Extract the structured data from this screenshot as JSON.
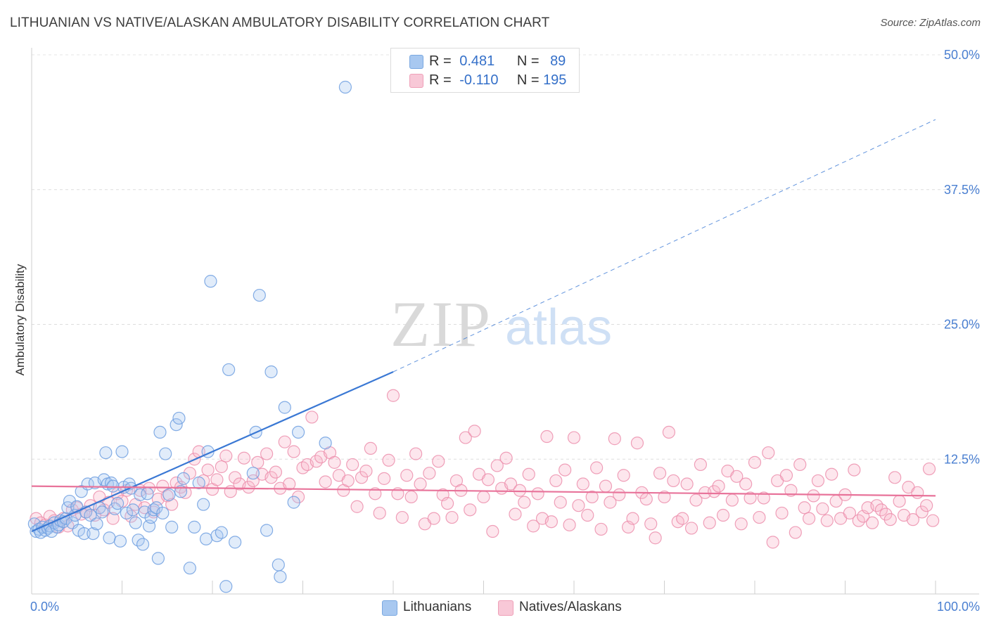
{
  "header": {
    "title": "LITHUANIAN VS NATIVE/ALASKAN AMBULATORY DISABILITY CORRELATION CHART",
    "source": "Source: ZipAtlas.com"
  },
  "watermark": {
    "part1": "ZIP",
    "part2": "atlas"
  },
  "legend": {
    "rows": [
      {
        "r_label": "R = ",
        "r_value": "0.481",
        "n_label": "N = ",
        "n_value": "89",
        "color": "#a8c8f0"
      },
      {
        "r_label": "R = ",
        "r_value": "-0.110",
        "n_label": "N = ",
        "n_value": "195",
        "color": "#f4b8cb"
      }
    ]
  },
  "bottom_legend": [
    {
      "label": "Lithuanians",
      "color": "#a8c8f0"
    },
    {
      "label": "Natives/Alaskans",
      "color": "#f4b8cb"
    }
  ],
  "chart_data": {
    "type": "scatter",
    "title": "LITHUANIAN VS NATIVE/ALASKAN AMBULATORY DISABILITY CORRELATION CHART",
    "xlabel": "",
    "ylabel": "Ambulatory Disability",
    "xlim": [
      0,
      100
    ],
    "ylim": [
      0,
      50
    ],
    "x_tick_labels": [
      "0.0%",
      "100.0%"
    ],
    "y_ticks": [
      12.5,
      25.0,
      37.5,
      50.0
    ],
    "y_tick_labels": [
      "12.5%",
      "25.0%",
      "37.5%",
      "50.0%"
    ],
    "grid": "horizontal-dashed",
    "legend_position": "top-center",
    "series": [
      {
        "name": "Lithuanians",
        "color": "#6fa3e8",
        "trend": {
          "x0": 0,
          "y0": 5.8,
          "x1": 40,
          "y1": 20.6,
          "dash_to_x": 100,
          "dash_to_y": 44.0,
          "color": "#3a78d4"
        },
        "points": [
          [
            0.3,
            6.5
          ],
          [
            0.5,
            5.8
          ],
          [
            0.8,
            6.0
          ],
          [
            1.0,
            5.7
          ],
          [
            1.2,
            6.2
          ],
          [
            1.5,
            5.9
          ],
          [
            1.8,
            6.1
          ],
          [
            2.0,
            6.3
          ],
          [
            2.2,
            5.8
          ],
          [
            2.5,
            6.6
          ],
          [
            2.8,
            6.2
          ],
          [
            3.0,
            6.4
          ],
          [
            3.2,
            6.8
          ],
          [
            3.5,
            6.7
          ],
          [
            3.8,
            7.0
          ],
          [
            4.0,
            8.0
          ],
          [
            4.2,
            8.6
          ],
          [
            4.5,
            6.6
          ],
          [
            4.8,
            7.3
          ],
          [
            5.0,
            8.1
          ],
          [
            5.2,
            5.9
          ],
          [
            5.5,
            9.5
          ],
          [
            5.8,
            5.6
          ],
          [
            6.0,
            7.6
          ],
          [
            6.2,
            10.2
          ],
          [
            6.5,
            7.3
          ],
          [
            6.8,
            5.6
          ],
          [
            7.0,
            10.3
          ],
          [
            7.2,
            6.5
          ],
          [
            7.5,
            8.0
          ],
          [
            7.8,
            7.6
          ],
          [
            8.0,
            10.6
          ],
          [
            8.2,
            13.1
          ],
          [
            8.4,
            10.2
          ],
          [
            8.6,
            5.2
          ],
          [
            8.8,
            10.3
          ],
          [
            9.0,
            10.0
          ],
          [
            9.2,
            7.9
          ],
          [
            9.5,
            8.4
          ],
          [
            9.8,
            4.9
          ],
          [
            10.0,
            13.2
          ],
          [
            10.2,
            9.9
          ],
          [
            10.5,
            7.5
          ],
          [
            10.8,
            10.2
          ],
          [
            11.0,
            9.8
          ],
          [
            11.2,
            7.8
          ],
          [
            11.5,
            6.6
          ],
          [
            11.8,
            5.0
          ],
          [
            12.0,
            9.2
          ],
          [
            12.3,
            4.6
          ],
          [
            12.5,
            7.6
          ],
          [
            12.8,
            9.3
          ],
          [
            13.0,
            6.3
          ],
          [
            13.2,
            7.1
          ],
          [
            13.5,
            7.8
          ],
          [
            13.8,
            8.0
          ],
          [
            14.0,
            3.3
          ],
          [
            14.2,
            15.0
          ],
          [
            14.5,
            7.5
          ],
          [
            14.8,
            13.0
          ],
          [
            15.2,
            9.2
          ],
          [
            15.5,
            6.2
          ],
          [
            16.0,
            15.7
          ],
          [
            16.3,
            16.3
          ],
          [
            16.5,
            9.5
          ],
          [
            16.8,
            10.7
          ],
          [
            17.5,
            2.4
          ],
          [
            18.0,
            6.2
          ],
          [
            18.5,
            10.3
          ],
          [
            19.0,
            8.3
          ],
          [
            19.3,
            5.1
          ],
          [
            19.5,
            13.2
          ],
          [
            19.8,
            29.0
          ],
          [
            20.5,
            5.4
          ],
          [
            21.0,
            5.7
          ],
          [
            21.5,
            0.7
          ],
          [
            21.8,
            20.8
          ],
          [
            22.5,
            4.8
          ],
          [
            24.5,
            11.2
          ],
          [
            24.8,
            15.0
          ],
          [
            25.2,
            27.7
          ],
          [
            26.0,
            5.9
          ],
          [
            26.5,
            20.6
          ],
          [
            27.3,
            2.7
          ],
          [
            27.5,
            1.6
          ],
          [
            28.0,
            17.3
          ],
          [
            29.0,
            8.5
          ],
          [
            29.5,
            15.0
          ],
          [
            32.5,
            14.0
          ],
          [
            34.7,
            47.0
          ]
        ]
      },
      {
        "name": "Natives/Alaskans",
        "color": "#f08fb0",
        "trend": {
          "x0": 0,
          "y0": 10.0,
          "x1": 100,
          "y1": 9.1,
          "color": "#e8739a"
        },
        "points": [
          [
            0.5,
            7.0
          ],
          [
            1.0,
            6.6
          ],
          [
            1.5,
            6.4
          ],
          [
            2.0,
            7.2
          ],
          [
            2.5,
            6.8
          ],
          [
            3.0,
            6.2
          ],
          [
            3.5,
            7.0
          ],
          [
            4.0,
            6.3
          ],
          [
            4.5,
            7.8
          ],
          [
            5.0,
            8.0
          ],
          [
            5.5,
            7.4
          ],
          [
            6.0,
            7.6
          ],
          [
            6.5,
            8.2
          ],
          [
            7.0,
            7.3
          ],
          [
            7.5,
            9.0
          ],
          [
            8.0,
            7.8
          ],
          [
            8.5,
            8.5
          ],
          [
            9.0,
            7.0
          ],
          [
            9.5,
            9.3
          ],
          [
            10.0,
            8.6
          ],
          [
            10.5,
            9.6
          ],
          [
            11.0,
            7.2
          ],
          [
            11.5,
            8.3
          ],
          [
            12.0,
            9.6
          ],
          [
            12.5,
            8.0
          ],
          [
            13.0,
            9.8
          ],
          [
            13.5,
            7.6
          ],
          [
            14.0,
            8.8
          ],
          [
            14.5,
            10.0
          ],
          [
            15.0,
            9.1
          ],
          [
            15.5,
            8.3
          ],
          [
            16.0,
            10.3
          ],
          [
            16.5,
            9.9
          ],
          [
            17.0,
            9.4
          ],
          [
            17.5,
            11.2
          ],
          [
            18.0,
            12.5
          ],
          [
            18.5,
            13.2
          ],
          [
            19.0,
            10.5
          ],
          [
            19.5,
            11.5
          ],
          [
            20.0,
            9.7
          ],
          [
            20.5,
            10.6
          ],
          [
            21.0,
            11.8
          ],
          [
            21.5,
            12.8
          ],
          [
            22.0,
            9.5
          ],
          [
            22.5,
            10.8
          ],
          [
            23.0,
            10.2
          ],
          [
            23.5,
            12.6
          ],
          [
            24.0,
            9.9
          ],
          [
            24.5,
            10.5
          ],
          [
            25.0,
            12.2
          ],
          [
            25.5,
            11.1
          ],
          [
            26.0,
            13.0
          ],
          [
            26.5,
            10.8
          ],
          [
            27.0,
            11.3
          ],
          [
            27.5,
            9.8
          ],
          [
            28.0,
            14.1
          ],
          [
            28.5,
            10.2
          ],
          [
            29.0,
            13.2
          ],
          [
            29.5,
            9.0
          ],
          [
            30.0,
            11.7
          ],
          [
            30.5,
            12.0
          ],
          [
            31.0,
            16.4
          ],
          [
            31.5,
            12.3
          ],
          [
            32.0,
            12.7
          ],
          [
            32.5,
            10.4
          ],
          [
            33.0,
            13.1
          ],
          [
            33.5,
            12.2
          ],
          [
            34.0,
            11.0
          ],
          [
            34.5,
            9.6
          ],
          [
            35.0,
            10.5
          ],
          [
            35.5,
            12.0
          ],
          [
            36.0,
            8.1
          ],
          [
            36.5,
            10.8
          ],
          [
            37.0,
            11.4
          ],
          [
            37.5,
            13.5
          ],
          [
            38.0,
            9.3
          ],
          [
            38.5,
            7.5
          ],
          [
            39.0,
            10.7
          ],
          [
            39.5,
            12.4
          ],
          [
            40.0,
            18.4
          ],
          [
            40.5,
            9.3
          ],
          [
            41.0,
            7.1
          ],
          [
            41.5,
            11.0
          ],
          [
            42.0,
            9.0
          ],
          [
            42.5,
            13.0
          ],
          [
            43.0,
            10.2
          ],
          [
            43.5,
            6.5
          ],
          [
            44.0,
            11.2
          ],
          [
            44.5,
            7.0
          ],
          [
            45.0,
            12.3
          ],
          [
            45.5,
            9.2
          ],
          [
            46.0,
            8.4
          ],
          [
            46.5,
            7.1
          ],
          [
            47.0,
            10.5
          ],
          [
            47.5,
            9.6
          ],
          [
            48.0,
            14.5
          ],
          [
            48.5,
            7.8
          ],
          [
            49.0,
            15.1
          ],
          [
            49.5,
            11.1
          ],
          [
            50.0,
            9.0
          ],
          [
            50.5,
            10.6
          ],
          [
            51.0,
            5.8
          ],
          [
            51.5,
            11.9
          ],
          [
            52.0,
            9.8
          ],
          [
            52.5,
            12.6
          ],
          [
            53.0,
            10.2
          ],
          [
            53.5,
            7.4
          ],
          [
            54.0,
            9.6
          ],
          [
            54.5,
            8.5
          ],
          [
            55.0,
            11.1
          ],
          [
            55.5,
            6.3
          ],
          [
            56.0,
            9.3
          ],
          [
            56.5,
            7.0
          ],
          [
            57.0,
            14.6
          ],
          [
            57.5,
            6.7
          ],
          [
            58.0,
            10.5
          ],
          [
            58.5,
            8.5
          ],
          [
            59.0,
            11.5
          ],
          [
            59.5,
            6.4
          ],
          [
            60.0,
            14.5
          ],
          [
            60.5,
            8.2
          ],
          [
            61.0,
            10.2
          ],
          [
            61.5,
            7.3
          ],
          [
            62.0,
            9.0
          ],
          [
            62.5,
            11.7
          ],
          [
            63.0,
            6.0
          ],
          [
            63.5,
            10.0
          ],
          [
            64.0,
            8.5
          ],
          [
            64.5,
            14.4
          ],
          [
            65.0,
            9.2
          ],
          [
            65.5,
            11.0
          ],
          [
            66.0,
            6.2
          ],
          [
            66.5,
            7.0
          ],
          [
            67.0,
            14.0
          ],
          [
            67.5,
            9.4
          ],
          [
            68.0,
            8.8
          ],
          [
            68.5,
            6.5
          ],
          [
            69.0,
            5.2
          ],
          [
            69.5,
            11.2
          ],
          [
            70.0,
            9.0
          ],
          [
            70.5,
            15.0
          ],
          [
            71.0,
            10.5
          ],
          [
            71.5,
            6.7
          ],
          [
            72.0,
            7.0
          ],
          [
            72.5,
            10.2
          ],
          [
            73.0,
            6.1
          ],
          [
            73.5,
            8.7
          ],
          [
            74.0,
            12.0
          ],
          [
            74.5,
            9.4
          ],
          [
            75.0,
            6.6
          ],
          [
            75.5,
            9.5
          ],
          [
            76.0,
            10.0
          ],
          [
            76.5,
            7.3
          ],
          [
            77.0,
            11.4
          ],
          [
            77.5,
            8.7
          ],
          [
            78.0,
            10.9
          ],
          [
            78.5,
            6.5
          ],
          [
            79.0,
            10.2
          ],
          [
            79.5,
            8.9
          ],
          [
            80.0,
            12.2
          ],
          [
            80.5,
            7.1
          ],
          [
            81.0,
            8.9
          ],
          [
            81.5,
            13.1
          ],
          [
            82.0,
            4.8
          ],
          [
            82.5,
            10.5
          ],
          [
            83.0,
            7.5
          ],
          [
            83.5,
            11.0
          ],
          [
            84.0,
            9.6
          ],
          [
            84.5,
            5.7
          ],
          [
            85.0,
            12.0
          ],
          [
            85.5,
            8.0
          ],
          [
            86.0,
            7.0
          ],
          [
            86.5,
            9.1
          ],
          [
            87.0,
            10.5
          ],
          [
            87.5,
            7.9
          ],
          [
            88.0,
            6.8
          ],
          [
            88.5,
            11.1
          ],
          [
            89.0,
            8.6
          ],
          [
            89.5,
            7.0
          ],
          [
            90.0,
            9.2
          ],
          [
            90.5,
            7.5
          ],
          [
            91.0,
            11.5
          ],
          [
            91.5,
            6.8
          ],
          [
            92.0,
            7.2
          ],
          [
            92.5,
            8.0
          ],
          [
            93.0,
            6.6
          ],
          [
            93.5,
            8.2
          ],
          [
            94.0,
            7.8
          ],
          [
            94.5,
            7.4
          ],
          [
            95.0,
            6.9
          ],
          [
            95.5,
            10.8
          ],
          [
            96.0,
            8.6
          ],
          [
            96.5,
            7.3
          ],
          [
            97.0,
            9.9
          ],
          [
            97.5,
            6.9
          ],
          [
            98.0,
            9.4
          ],
          [
            98.5,
            7.6
          ],
          [
            99.0,
            8.2
          ],
          [
            99.3,
            11.6
          ],
          [
            99.7,
            6.8
          ]
        ]
      }
    ]
  }
}
